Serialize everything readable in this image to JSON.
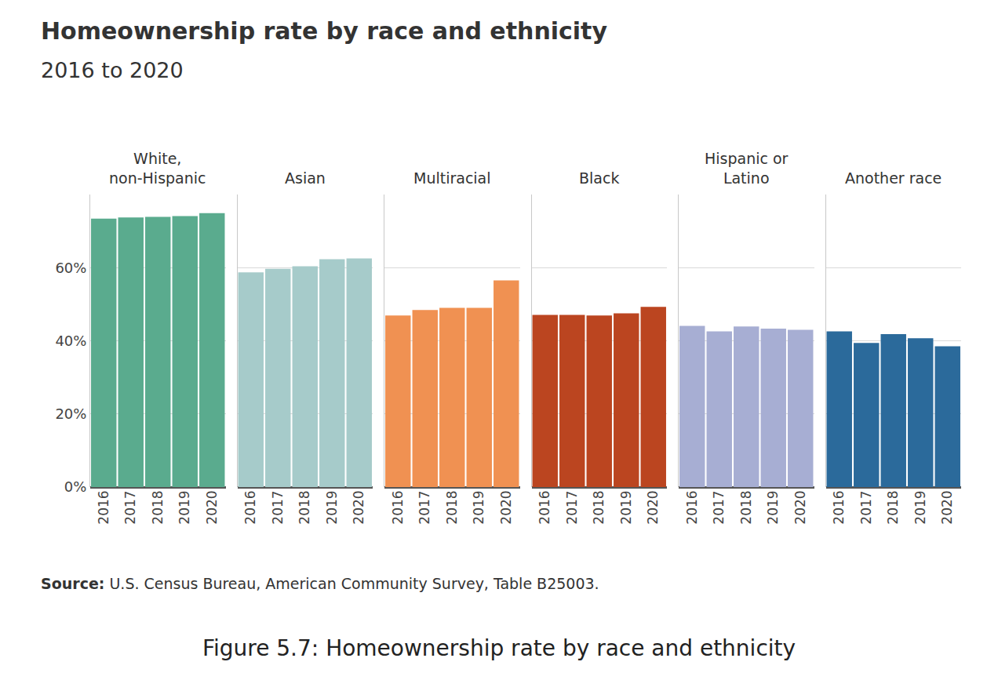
{
  "title": "Homeownership rate by race and ethnicity",
  "subtitle": "2016 to 2020",
  "source_label": "Source:",
  "source": "U.S. Census Bureau, American Community Survey, Table B25003.",
  "caption": "Figure 5.7: Homeownership rate by race and ethnicity",
  "chart_data": [
    {
      "type": "bar",
      "title": "White, non-Hispanic",
      "categories": [
        "2016",
        "2017",
        "2018",
        "2019",
        "2020"
      ],
      "values": [
        73.4,
        73.7,
        73.9,
        74.1,
        74.9
      ],
      "color": "#5aab8e",
      "ylim": [
        0,
        80
      ],
      "yticks": [
        {
          "value": 0,
          "label": "0%"
        },
        {
          "value": 20,
          "label": "20%"
        },
        {
          "value": 40,
          "label": "40%"
        },
        {
          "value": 60,
          "label": "60%"
        }
      ],
      "grid": true
    },
    {
      "type": "bar",
      "title": "Asian",
      "categories": [
        "2016",
        "2017",
        "2018",
        "2019",
        "2020"
      ],
      "values": [
        58.7,
        59.7,
        60.4,
        62.3,
        62.5
      ],
      "color": "#a6cbca",
      "ylim": [
        0,
        80
      ],
      "yticks": [
        {
          "value": 0,
          "label": "0%"
        },
        {
          "value": 20,
          "label": "20%"
        },
        {
          "value": 40,
          "label": "40%"
        },
        {
          "value": 60,
          "label": "60%"
        }
      ],
      "grid": true,
      "tick_labels": "x"
    },
    {
      "type": "bar",
      "title": "Multiracial",
      "categories": [
        "2016",
        "2017",
        "2018",
        "2019",
        "2020"
      ],
      "values": [
        46.9,
        48.4,
        49.0,
        49.0,
        56.5
      ],
      "color": "#f09152",
      "ylim": [
        0,
        80
      ],
      "yticks": [
        {
          "value": 0,
          "label": "0%"
        },
        {
          "value": 20,
          "label": "20%"
        },
        {
          "value": 40,
          "label": "40%"
        },
        {
          "value": 60,
          "label": "60%"
        }
      ],
      "grid": true,
      "tick_labels": "x"
    },
    {
      "type": "bar",
      "title": "Black",
      "categories": [
        "2016",
        "2017",
        "2018",
        "2019",
        "2020"
      ],
      "values": [
        47.1,
        47.1,
        46.9,
        47.5,
        49.3
      ],
      "color": "#bb4520",
      "ylim": [
        0,
        80
      ],
      "yticks": [
        {
          "value": 0,
          "label": "0%"
        },
        {
          "value": 20,
          "label": "20%"
        },
        {
          "value": 40,
          "label": "40%"
        },
        {
          "value": 60,
          "label": "60%"
        }
      ],
      "grid": true,
      "tick_labels": "x"
    },
    {
      "type": "bar",
      "title": "Hispanic or Latino",
      "categories": [
        "2016",
        "2017",
        "2018",
        "2019",
        "2020"
      ],
      "values": [
        44.1,
        42.6,
        43.9,
        43.3,
        43.0
      ],
      "color": "#a7aed3",
      "ylim": [
        0,
        80
      ],
      "yticks": [
        {
          "value": 0,
          "label": "0%"
        },
        {
          "value": 20,
          "label": "20%"
        },
        {
          "value": 40,
          "label": "40%"
        },
        {
          "value": 60,
          "label": "60%"
        }
      ],
      "grid": true,
      "tick_labels": "x"
    },
    {
      "type": "bar",
      "title": "Another race",
      "categories": [
        "2016",
        "2017",
        "2018",
        "2019",
        "2020"
      ],
      "values": [
        42.6,
        39.4,
        41.8,
        40.7,
        38.5
      ],
      "color": "#2b6a9b",
      "ylim": [
        0,
        80
      ],
      "yticks": [
        {
          "value": 0,
          "label": "0%"
        },
        {
          "value": 20,
          "label": "20%"
        },
        {
          "value": 40,
          "label": "40%"
        },
        {
          "value": 60,
          "label": "60%"
        }
      ],
      "grid": true,
      "tick_labels": "x"
    }
  ]
}
